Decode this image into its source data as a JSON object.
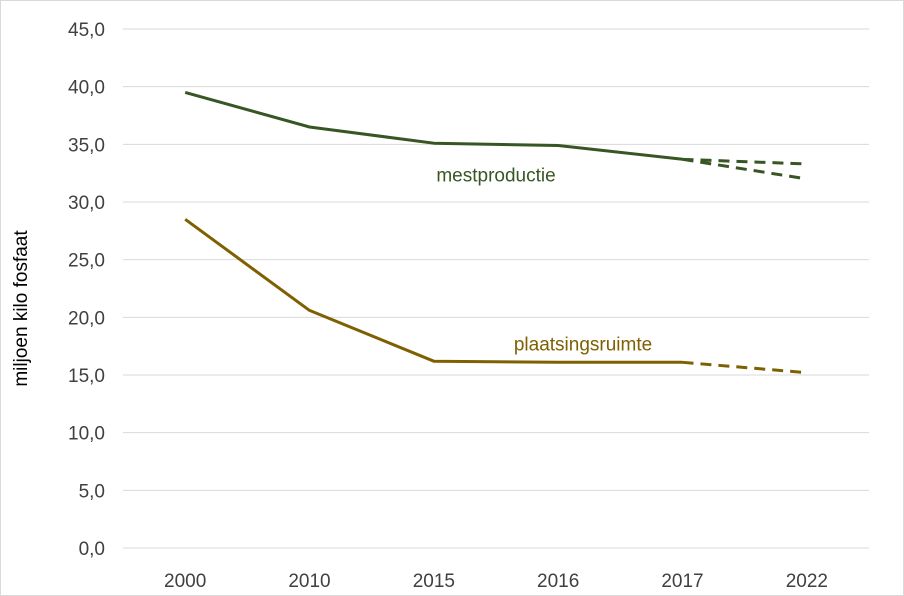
{
  "chart_data": {
    "type": "line",
    "title": "",
    "xlabel": "",
    "ylabel": "miljoen kilo fosfaat",
    "categories": [
      "2000",
      "2010",
      "2015",
      "2016",
      "2017",
      "2022"
    ],
    "y_ticks": [
      "0,0",
      "5,0",
      "10,0",
      "15,0",
      "20,0",
      "25,0",
      "30,0",
      "35,0",
      "40,0",
      "45,0"
    ],
    "ylim": [
      0,
      45
    ],
    "grid": true,
    "legend": "none",
    "series": [
      {
        "name": "mestproductie",
        "color": "#375623",
        "values": [
          39.5,
          36.5,
          35.1,
          34.9,
          33.7,
          null
        ],
        "projections": [
          {
            "from": "2017",
            "to": "2022",
            "values": [
              33.7,
              33.3
            ]
          },
          {
            "from": "2017",
            "to": "2022",
            "values": [
              33.7,
              32.0
            ]
          }
        ]
      },
      {
        "name": "plaatsingsruimte",
        "color": "#7f6000",
        "values": [
          28.5,
          20.6,
          16.2,
          16.1,
          16.1,
          null
        ],
        "projections": [
          {
            "from": "2017",
            "to": "2022",
            "values": [
              16.1,
              15.2
            ]
          }
        ]
      }
    ]
  }
}
